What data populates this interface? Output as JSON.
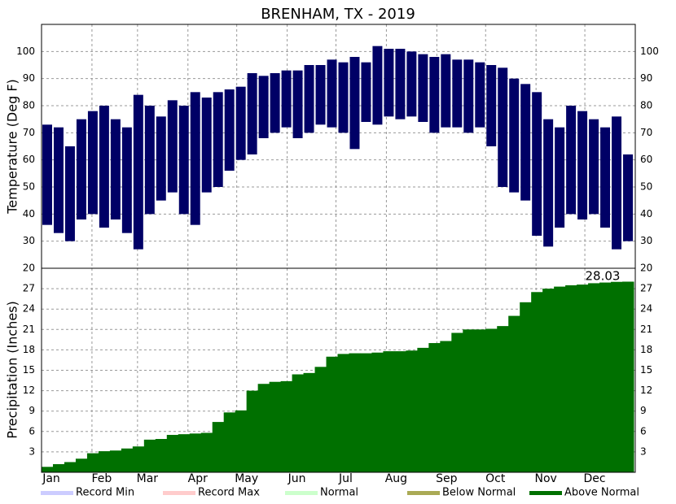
{
  "chart_data": [
    {
      "type": "range-bar",
      "title": "BRENHAM, TX - 2019",
      "ylabel": "Temperature (Deg F)",
      "color": "#000066",
      "x": [
        0,
        7,
        14,
        21,
        28,
        35,
        42,
        49,
        56,
        63,
        70,
        77,
        84,
        91,
        98,
        105,
        112,
        119,
        126,
        133,
        140,
        147,
        154,
        161,
        168,
        175,
        182,
        189,
        196,
        203,
        210,
        217,
        224,
        231,
        238,
        245,
        252,
        259,
        266,
        273,
        280,
        287,
        294,
        301,
        308,
        315,
        322,
        329,
        336,
        343,
        350,
        357
      ],
      "lows": [
        36,
        33,
        30,
        38,
        40,
        35,
        38,
        33,
        27,
        40,
        45,
        48,
        40,
        36,
        48,
        50,
        56,
        60,
        62,
        68,
        70,
        72,
        68,
        70,
        73,
        72,
        70,
        64,
        74,
        73,
        76,
        75,
        76,
        74,
        70,
        72,
        72,
        70,
        72,
        65,
        50,
        48,
        45,
        32,
        28,
        35,
        40,
        38,
        40,
        35,
        27,
        30
      ],
      "highs": [
        73,
        72,
        65,
        75,
        78,
        80,
        75,
        72,
        84,
        80,
        76,
        82,
        80,
        85,
        83,
        85,
        86,
        87,
        92,
        91,
        92,
        93,
        93,
        95,
        95,
        97,
        96,
        98,
        96,
        102,
        101,
        101,
        100,
        99,
        98,
        99,
        97,
        97,
        96,
        95,
        94,
        90,
        88,
        85,
        75,
        72,
        80,
        78,
        75,
        72,
        76,
        62
      ],
      "xlim": [
        0,
        365
      ],
      "ylim": [
        20,
        110
      ],
      "yticks": [
        20,
        30,
        40,
        50,
        60,
        70,
        80,
        90,
        100
      ],
      "grid": true
    },
    {
      "type": "step-area",
      "ylabel": "Precipitation (Inches)",
      "color": "#007000",
      "annotation": "28.03",
      "x": [
        0,
        7,
        14,
        21,
        28,
        35,
        42,
        49,
        56,
        63,
        70,
        77,
        84,
        91,
        98,
        105,
        112,
        119,
        126,
        133,
        140,
        147,
        154,
        161,
        168,
        175,
        182,
        189,
        196,
        203,
        210,
        217,
        224,
        231,
        238,
        245,
        252,
        259,
        266,
        273,
        280,
        287,
        294,
        301,
        308,
        315,
        322,
        329,
        336,
        343,
        350,
        357
      ],
      "values": [
        0.8,
        1.2,
        1.5,
        2.0,
        2.8,
        3.1,
        3.2,
        3.5,
        3.8,
        4.8,
        4.9,
        5.5,
        5.6,
        5.7,
        5.8,
        7.4,
        8.8,
        9.1,
        12.0,
        13.0,
        13.3,
        13.4,
        14.4,
        14.6,
        15.5,
        17.0,
        17.4,
        17.5,
        17.5,
        17.6,
        17.8,
        17.8,
        17.9,
        18.3,
        19.0,
        19.3,
        20.5,
        21.0,
        21.0,
        21.1,
        21.5,
        23.0,
        25.0,
        26.5,
        27.0,
        27.3,
        27.5,
        27.6,
        27.8,
        27.9,
        28.0,
        28.03
      ],
      "xlim": [
        0,
        365
      ],
      "ylim": [
        0,
        30
      ],
      "yticks": [
        3,
        6,
        9,
        12,
        15,
        18,
        21,
        24,
        27
      ],
      "grid": true,
      "xticks": [
        {
          "value": 0,
          "label": "Jan"
        },
        {
          "value": 31,
          "label": "Feb"
        },
        {
          "value": 59,
          "label": "Mar"
        },
        {
          "value": 90,
          "label": "Apr"
        },
        {
          "value": 120,
          "label": "May"
        },
        {
          "value": 151,
          "label": "Jun"
        },
        {
          "value": 181,
          "label": "Jul"
        },
        {
          "value": 212,
          "label": "Aug"
        },
        {
          "value": 243,
          "label": "Sep"
        },
        {
          "value": 273,
          "label": "Oct"
        },
        {
          "value": 304,
          "label": "Nov"
        },
        {
          "value": 334,
          "label": "Dec"
        }
      ],
      "legend": [
        {
          "name": "Record Min",
          "color": "#ccccff"
        },
        {
          "name": "Record Max",
          "color": "#ffcccc"
        },
        {
          "name": "Normal",
          "color": "#ccffcc"
        },
        {
          "name": "Below Normal",
          "color": "#aaaa55"
        },
        {
          "name": "Above Normal",
          "color": "#007000"
        }
      ]
    }
  ]
}
